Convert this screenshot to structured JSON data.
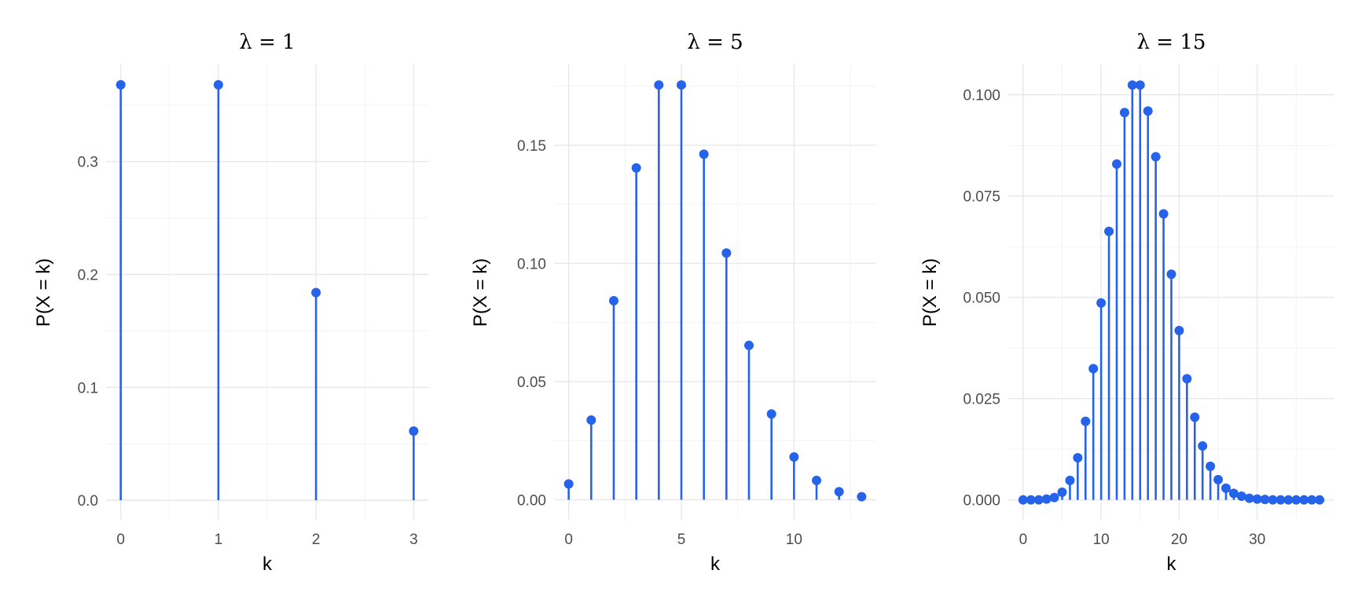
{
  "figure": {
    "colors": {
      "stem": "#2563EB",
      "grid_major": "#E8E8E8",
      "grid_minor": "#F3F3F3",
      "text": "#4D4D4D"
    }
  },
  "chart_data": [
    {
      "type": "scatter",
      "style": "lollipop",
      "title": "λ = 1",
      "xlabel": "k",
      "ylabel": "P(X = k)",
      "xlim": [
        -0.15,
        3.15
      ],
      "ylim": [
        -0.018,
        0.386
      ],
      "x_ticks": [
        0,
        1,
        2,
        3
      ],
      "x_tick_labels": [
        "0",
        "1",
        "2",
        "3"
      ],
      "y_ticks": [
        0.0,
        0.1,
        0.2,
        0.3
      ],
      "y_tick_labels": [
        "0.0",
        "0.1",
        "0.2",
        "0.3"
      ],
      "grid": true,
      "x": [
        0,
        1,
        2,
        3
      ],
      "values": [
        0.3679,
        0.3679,
        0.1839,
        0.0613
      ]
    },
    {
      "type": "scatter",
      "style": "lollipop",
      "title": "λ = 5",
      "xlabel": "k",
      "ylabel": "P(X = k)",
      "xlim": [
        -0.65,
        13.65
      ],
      "ylim": [
        -0.0088,
        0.1842
      ],
      "x_ticks": [
        0,
        5,
        10
      ],
      "x_tick_labels": [
        "0",
        "5",
        "10"
      ],
      "y_ticks": [
        0.0,
        0.05,
        0.1,
        0.15
      ],
      "y_tick_labels": [
        "0.00",
        "0.05",
        "0.10",
        "0.15"
      ],
      "grid": true,
      "x": [
        0,
        1,
        2,
        3,
        4,
        5,
        6,
        7,
        8,
        9,
        10,
        11,
        12,
        13
      ],
      "values": [
        0.0067,
        0.0337,
        0.0842,
        0.1404,
        0.1755,
        0.1755,
        0.1462,
        0.1044,
        0.0653,
        0.0363,
        0.0181,
        0.0082,
        0.0034,
        0.0013
      ]
    },
    {
      "type": "scatter",
      "style": "lollipop",
      "title": "λ = 15",
      "xlabel": "k",
      "ylabel": "P(X = k)",
      "xlim": [
        -1.9,
        39.9
      ],
      "ylim": [
        -0.0051,
        0.1075
      ],
      "x_ticks": [
        0,
        10,
        20,
        30
      ],
      "x_tick_labels": [
        "0",
        "10",
        "20",
        "30"
      ],
      "y_ticks": [
        0.0,
        0.025,
        0.05,
        0.075,
        0.1
      ],
      "y_tick_labels": [
        "0.000",
        "0.025",
        "0.050",
        "0.075",
        "0.100"
      ],
      "grid": true,
      "x": [
        0,
        1,
        2,
        3,
        4,
        5,
        6,
        7,
        8,
        9,
        10,
        11,
        12,
        13,
        14,
        15,
        16,
        17,
        18,
        19,
        20,
        21,
        22,
        23,
        24,
        25,
        26,
        27,
        28,
        29,
        30,
        31,
        32,
        33,
        34,
        35,
        36,
        37,
        38
      ],
      "values": [
        0.0,
        0.0,
        0.0,
        0.0002,
        0.0006,
        0.0019,
        0.0048,
        0.0104,
        0.0194,
        0.0324,
        0.0486,
        0.0663,
        0.0829,
        0.0956,
        0.1024,
        0.1024,
        0.096,
        0.0847,
        0.0706,
        0.0557,
        0.0418,
        0.0299,
        0.0204,
        0.0133,
        0.0083,
        0.005,
        0.0029,
        0.0016,
        0.0009,
        0.0004,
        0.0002,
        0.0001,
        0.0,
        0.0,
        0.0,
        0.0,
        0.0,
        0.0,
        0.0
      ]
    }
  ]
}
